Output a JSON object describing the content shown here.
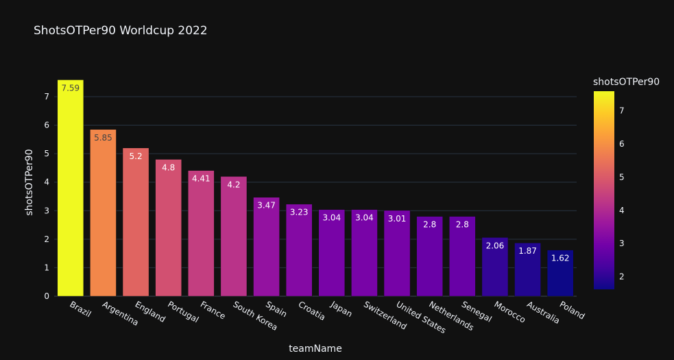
{
  "chart_data": {
    "type": "bar",
    "title": "ShotsOTPer90 Worldcup 2022",
    "xlabel": "teamName",
    "ylabel": "shotsOTPer90",
    "categories": [
      "Brazil",
      "Argentina",
      "England",
      "Portugal",
      "France",
      "South Korea",
      "Spain",
      "Croatia",
      "Japan",
      "Switzerland",
      "United States",
      "Netherlands",
      "Senegal",
      "Morocco",
      "Australia",
      "Poland"
    ],
    "values": [
      7.59,
      5.85,
      5.2,
      4.8,
      4.41,
      4.2,
      3.47,
      3.23,
      3.04,
      3.04,
      3.01,
      2.8,
      2.8,
      2.06,
      1.87,
      1.62
    ],
    "data_labels": [
      "7.59",
      "5.85",
      "5.2",
      "4.8",
      "4.41",
      "4.2",
      "3.47",
      "3.23",
      "3.04",
      "3.04",
      "3.01",
      "2.8",
      "2.8",
      "2.06",
      "1.87",
      "1.62"
    ],
    "ylim": [
      0,
      7.6
    ],
    "y_ticks": [
      "0",
      "1",
      "2",
      "3",
      "4",
      "5",
      "6",
      "7"
    ],
    "grid": true,
    "colorscale": "plasma",
    "colorbar": {
      "title": "shotsOTPer90",
      "range": [
        1.62,
        7.59
      ],
      "ticks": [
        "2",
        "3",
        "4",
        "5",
        "6",
        "7"
      ]
    },
    "colors": {
      "background": "#111111",
      "grid": "#283442",
      "text": "#f2f5fa"
    }
  }
}
